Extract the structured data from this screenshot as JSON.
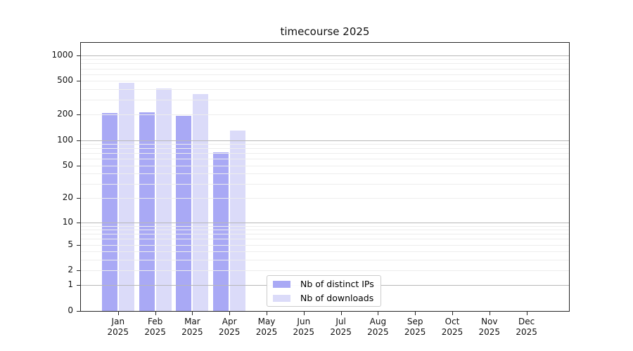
{
  "title": "timecourse 2025",
  "colors": {
    "distinct_ips": "#a9a9f5",
    "downloads": "#dbdbf9",
    "grid_decade": "#b8b8b8",
    "grid_minor": "#ededed",
    "axis": "#262626"
  },
  "legend": {
    "items": [
      {
        "label": "Nb of distinct IPs",
        "color_key": "distinct_ips"
      },
      {
        "label": "Nb of downloads",
        "color_key": "downloads"
      }
    ]
  },
  "chart_data": {
    "type": "bar",
    "title": "timecourse 2025",
    "x_axis": {
      "categories": [
        {
          "month": "Jan",
          "year": "2025"
        },
        {
          "month": "Feb",
          "year": "2025"
        },
        {
          "month": "Mar",
          "year": "2025"
        },
        {
          "month": "Apr",
          "year": "2025"
        },
        {
          "month": "May",
          "year": "2025"
        },
        {
          "month": "Jun",
          "year": "2025"
        },
        {
          "month": "Jul",
          "year": "2025"
        },
        {
          "month": "Aug",
          "year": "2025"
        },
        {
          "month": "Sep",
          "year": "2025"
        },
        {
          "month": "Oct",
          "year": "2025"
        },
        {
          "month": "Nov",
          "year": "2025"
        },
        {
          "month": "Dec",
          "year": "2025"
        }
      ]
    },
    "series": [
      {
        "name": "Nb of distinct IPs",
        "color_key": "distinct_ips",
        "values": [
          210,
          215,
          195,
          72,
          0,
          0,
          0,
          0,
          0,
          0,
          0,
          0
        ]
      },
      {
        "name": "Nb of downloads",
        "color_key": "downloads",
        "values": [
          470,
          405,
          350,
          130,
          0,
          0,
          0,
          0,
          0,
          0,
          0,
          0
        ]
      }
    ],
    "y_axis": {
      "scale": "log1p",
      "ticks": [
        0,
        1,
        2,
        5,
        10,
        20,
        50,
        100,
        200,
        500,
        1000
      ],
      "decade_gridlines": [
        1,
        10,
        100,
        1000
      ],
      "ylim": [
        0,
        1400
      ]
    },
    "grid": "both",
    "legend_position": "lower center"
  }
}
